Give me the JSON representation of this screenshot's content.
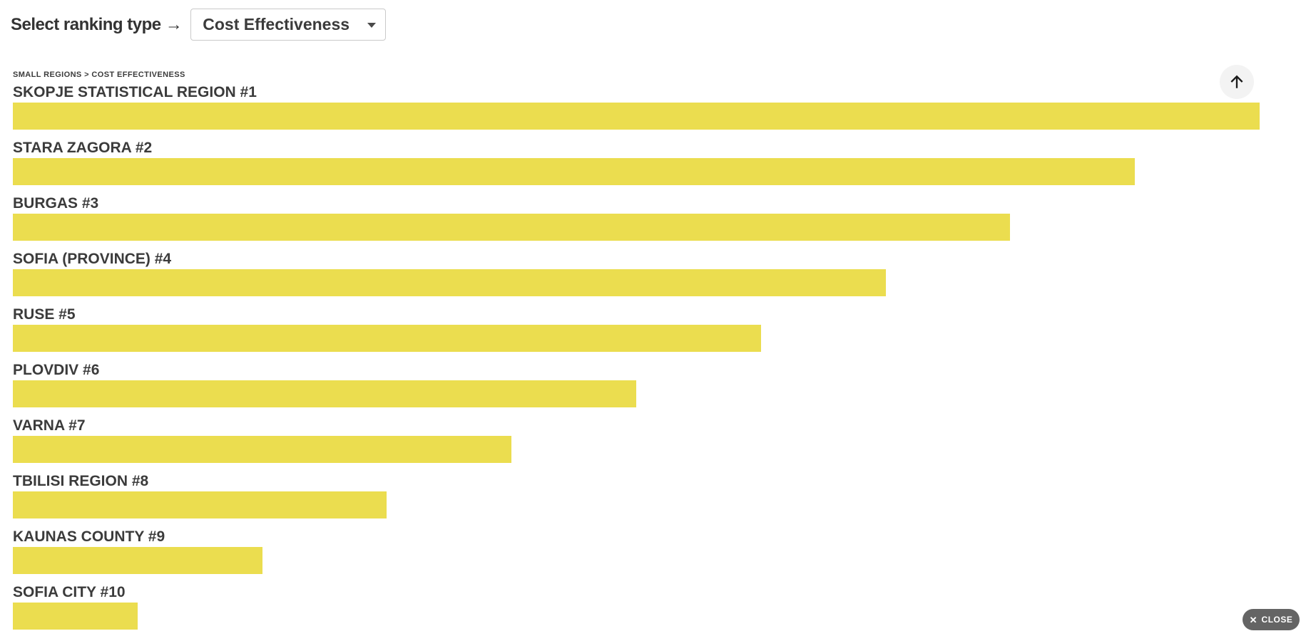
{
  "toolbar": {
    "label": "Select ranking type →",
    "select": {
      "value": "Cost Effectiveness"
    }
  },
  "breadcrumb": {
    "text": "SMALL REGIONS > COST EFFECTIVENESS"
  },
  "scroll_top": {
    "icon_name": "arrow-up-icon"
  },
  "close": {
    "icon": "✕",
    "label": "CLOSE"
  },
  "colors": {
    "page_bg": "#ffffff",
    "text": "#3b3b3b",
    "bar": "#ebdd4f",
    "select_border": "#c9c9c9",
    "scroll_top_bg": "#f3f3f3",
    "close_bg": "#646464"
  },
  "chart_data": {
    "type": "bar",
    "orientation": "horizontal",
    "title": "SMALL REGIONS > COST EFFECTIVENESS",
    "subtitle": "Ranking: Cost Effectiveness (no numeric value axis shown; bar lengths decrease linearly with rank)",
    "categories": [
      "SKOPJE STATISTICAL REGION #1",
      "STARA ZAGORA #2",
      "BURGAS #3",
      "SOFIA (PROVINCE) #4",
      "RUSE #5",
      "PLOVDIV #6",
      "VARNA #7",
      "TBILISI REGION #8",
      "KAUNAS COUNTY #9",
      "SOFIA CITY #10"
    ],
    "ranks": [
      1,
      2,
      3,
      4,
      5,
      6,
      7,
      8,
      9,
      10
    ],
    "relative_width_pct": [
      100,
      90,
      80,
      70,
      60,
      50,
      40,
      30,
      20,
      10
    ],
    "bar_color": "#ebdd4f",
    "grid": false,
    "legend": false
  }
}
